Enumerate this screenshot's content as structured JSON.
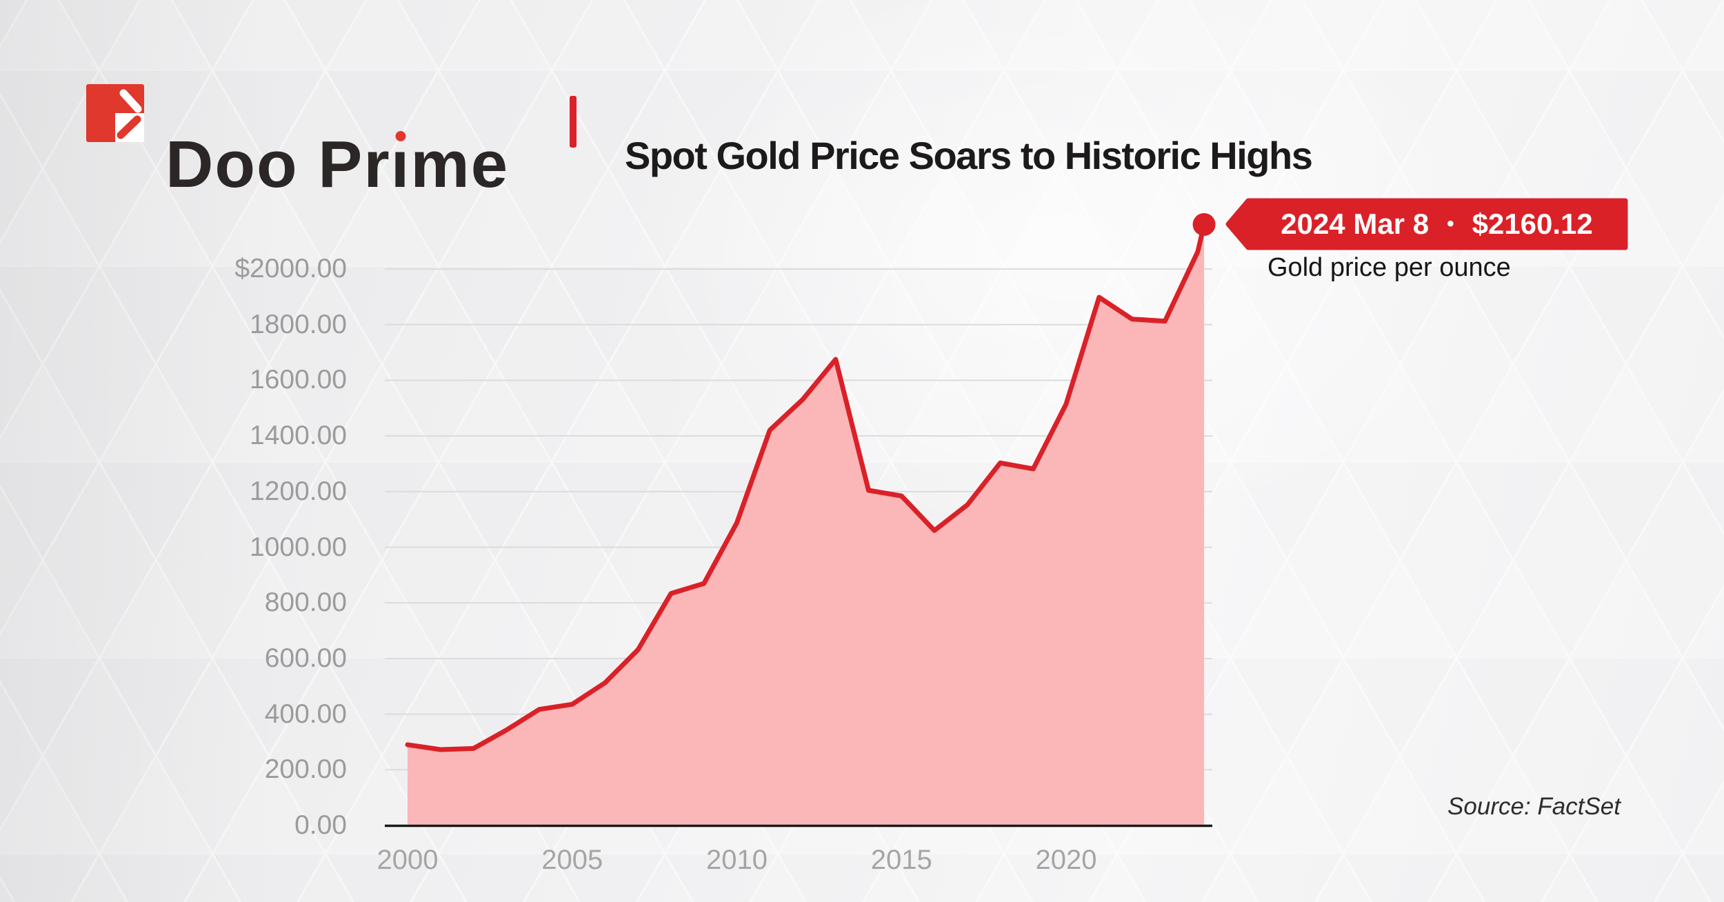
{
  "header": {
    "brand": {
      "name": "Doo Prime",
      "pre": "Doo Pr",
      "i_dotless": "ı",
      "post": "me"
    },
    "title": "Spot Gold Price Soars to Historic Highs"
  },
  "callout": {
    "date": "2024 Mar 8",
    "bullet": "•",
    "price": "$2160.12",
    "sub_label": "Gold price per ounce"
  },
  "source": "Source: FactSet",
  "colors": {
    "red": "#da2128",
    "logo_red": "#e0382d",
    "pink_fill": "#fbb6b8",
    "grid": "#dbdbdb",
    "baseline": "#191919",
    "badge_text": "#ffffff"
  },
  "chart_data": {
    "type": "area",
    "title": "Spot Gold Price Soars to Historic Highs",
    "series_name": "Gold price per ounce (USD)",
    "x": [
      2000,
      2001,
      2002,
      2003,
      2004,
      2005,
      2006,
      2007,
      2008,
      2009,
      2010,
      2011,
      2012,
      2013,
      2014,
      2015,
      2016,
      2017,
      2018,
      2019,
      2020,
      2021,
      2022,
      2023,
      2024,
      2024.19
    ],
    "values": [
      290.25,
      272.65,
      276.5,
      342.75,
      417.25,
      435.6,
      513.0,
      632.0,
      833.75,
      869.75,
      1087.5,
      1420.78,
      1531.0,
      1675.35,
      1204.5,
      1184.37,
      1060.0,
      1152.27,
      1303.05,
      1281.65,
      1514.75,
      1898.36,
      1820.1,
      1812.35,
      2062.98,
      2160.12
    ],
    "last_point": {
      "date": "2024 Mar 8",
      "value": 2160.12
    },
    "y_ticks": [
      {
        "label": "$2000.00",
        "value": 2000
      },
      {
        "label": "1800.00",
        "value": 1800
      },
      {
        "label": "1600.00",
        "value": 1600
      },
      {
        "label": "1400.00",
        "value": 1400
      },
      {
        "label": "1200.00",
        "value": 1200
      },
      {
        "label": "1000.00",
        "value": 1000
      },
      {
        "label": "800.00",
        "value": 800
      },
      {
        "label": "600.00",
        "value": 600
      },
      {
        "label": "400.00",
        "value": 400
      },
      {
        "label": "200.00",
        "value": 200
      },
      {
        "label": "0.00",
        "value": 0
      }
    ],
    "x_ticks": [
      {
        "label": "2000",
        "value": 2000
      },
      {
        "label": "2005",
        "value": 2005
      },
      {
        "label": "2010",
        "value": 2010
      },
      {
        "label": "2015",
        "value": 2015
      },
      {
        "label": "2020",
        "value": 2020
      }
    ],
    "xlim": [
      2000,
      2024.19
    ],
    "ylim": [
      0,
      2166
    ],
    "grid": "horizontal",
    "legend": "none"
  }
}
